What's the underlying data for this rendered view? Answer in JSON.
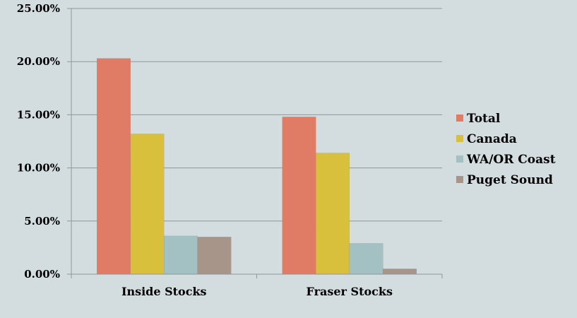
{
  "chart_data": {
    "type": "bar",
    "categories": [
      "Inside Stocks",
      "Fraser Stocks"
    ],
    "series": [
      {
        "name": "Total",
        "values": [
          20.3,
          14.8
        ],
        "color": "#e07b66"
      },
      {
        "name": "Canada",
        "values": [
          13.2,
          11.4
        ],
        "color": "#d9c03c"
      },
      {
        "name": "WA/OR Coast",
        "values": [
          3.6,
          2.9
        ],
        "color": "#a3c0c3"
      },
      {
        "name": "Puget Sound",
        "values": [
          3.5,
          0.5
        ],
        "color": "#a89589"
      }
    ],
    "y_ticks": [
      "0.00%",
      "5.00%",
      "10.00%",
      "15.00%",
      "20.00%",
      "25.00%"
    ],
    "ylim": [
      0,
      25
    ],
    "grid": true,
    "legend_position": "right",
    "colors": {
      "background": "#d3dde0",
      "grid": "#8f9699"
    }
  }
}
